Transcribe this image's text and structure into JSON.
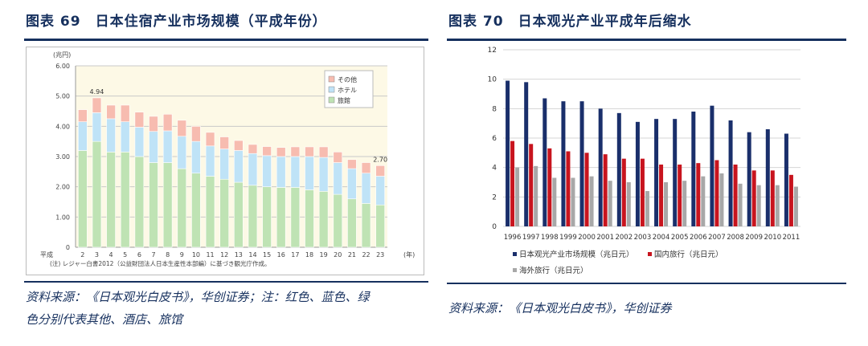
{
  "left": {
    "title": "图表 69　日本住宿产业市场规模（平成年份）",
    "source_line1": "资料来源：《日本观光白皮书》，华创证券；注：红色、蓝色、绿",
    "source_line2": "色分别代表其他、酒店、旅馆",
    "chart_data": {
      "type": "bar",
      "stacked": true,
      "unit_label": "(兆円)",
      "era_label": "平成",
      "x_unit": "(年)",
      "categories": [
        "2",
        "3",
        "4",
        "5",
        "6",
        "7",
        "8",
        "9",
        "10",
        "11",
        "12",
        "13",
        "14",
        "15",
        "16",
        "17",
        "18",
        "19",
        "20",
        "21",
        "22",
        "23"
      ],
      "series": [
        {
          "name": "旅館",
          "color": "#bfe3b4",
          "values": [
            3.2,
            3.5,
            3.15,
            3.15,
            3.0,
            2.8,
            2.8,
            2.6,
            2.45,
            2.35,
            2.25,
            2.15,
            2.05,
            2.0,
            1.98,
            1.98,
            1.9,
            1.85,
            1.75,
            1.6,
            1.45,
            1.4
          ]
        },
        {
          "name": "ホテル",
          "color": "#bfe3f7",
          "values": [
            0.95,
            0.95,
            1.1,
            1.0,
            0.97,
            1.03,
            1.05,
            1.07,
            1.05,
            1.0,
            1.0,
            1.05,
            1.05,
            1.03,
            1.02,
            1.02,
            1.1,
            1.12,
            1.05,
            1.0,
            1.0,
            0.95
          ]
        },
        {
          "name": "その他",
          "color": "#f7bcb0",
          "values": [
            0.4,
            0.49,
            0.45,
            0.55,
            0.5,
            0.5,
            0.55,
            0.53,
            0.5,
            0.45,
            0.4,
            0.33,
            0.3,
            0.3,
            0.3,
            0.32,
            0.32,
            0.35,
            0.35,
            0.3,
            0.35,
            0.35
          ]
        }
      ],
      "annotations": [
        {
          "index": 1,
          "text": "4.94"
        },
        {
          "index": 21,
          "text": "2.70"
        }
      ],
      "yticks": [
        "0",
        "1.00",
        "2.00",
        "3.00",
        "4.00",
        "5.00",
        "6.00"
      ],
      "ylim": [
        0,
        6
      ],
      "note": "(注) レジャー白書2012（公益財団法人日本生産性本部編）に基づき観光庁作成。",
      "legend_position": "top-right",
      "grid": true
    }
  },
  "right": {
    "title": "图表 70　日本观光产业平成年后缩水",
    "source": "资料来源：《日本观光白皮书》，华创证券",
    "chart_data": {
      "type": "bar",
      "categories": [
        "1996",
        "1997",
        "1998",
        "1999",
        "2000",
        "2001",
        "2002",
        "2003",
        "2004",
        "2005",
        "2006",
        "2007",
        "2008",
        "2009",
        "2010",
        "2011"
      ],
      "series": [
        {
          "name": "日本观光产业市场规模（兆日元）",
          "color": "#1a2f6b",
          "values": [
            9.9,
            9.8,
            8.7,
            8.5,
            8.5,
            8.0,
            7.7,
            7.1,
            7.3,
            7.3,
            7.8,
            8.2,
            7.2,
            6.4,
            6.6,
            6.3
          ]
        },
        {
          "name": "国内旅行（兆日元）",
          "color": "#c8141e",
          "values": [
            5.8,
            5.6,
            5.3,
            5.1,
            5.0,
            4.9,
            4.6,
            4.6,
            4.2,
            4.2,
            4.3,
            4.5,
            4.2,
            3.8,
            3.8,
            3.5
          ]
        },
        {
          "name": "海外旅行（兆日元）",
          "color": "#a8a8a8",
          "values": [
            4.0,
            4.1,
            3.3,
            3.3,
            3.4,
            3.1,
            3.0,
            2.4,
            3.0,
            3.1,
            3.4,
            3.6,
            2.9,
            2.8,
            2.8,
            2.7
          ]
        }
      ],
      "yticks": [
        "0",
        "2",
        "4",
        "6",
        "8",
        "10",
        "12"
      ],
      "ylim": [
        0,
        12
      ],
      "legend_position": "bottom",
      "grid": true
    }
  }
}
